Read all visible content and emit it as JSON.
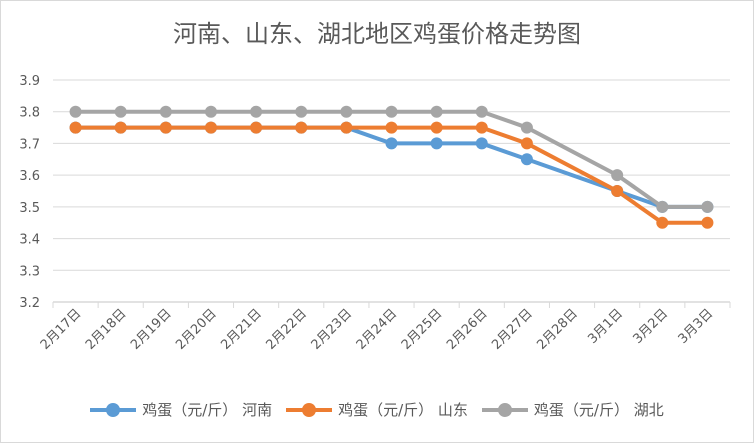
{
  "chart_data": {
    "type": "line",
    "title": "河南、山东、湖北地区鸡蛋价格走势图",
    "categories": [
      "2月17日",
      "2月18日",
      "2月19日",
      "2月20日",
      "2月21日",
      "2月22日",
      "2月23日",
      "2月24日",
      "2月25日",
      "2月26日",
      "2月27日",
      "2月28日",
      "3月1日",
      "3月2日",
      "3月3日"
    ],
    "ylim": [
      3.2,
      3.9
    ],
    "yticks": [
      "3.2",
      "3.3",
      "3.4",
      "3.5",
      "3.6",
      "3.7",
      "3.8",
      "3.9"
    ],
    "grid": true,
    "legend": "bottom",
    "series": [
      {
        "name": "鸡蛋（元/斤） 河南",
        "color": "#5b9bd5",
        "values": [
          3.75,
          3.75,
          3.75,
          3.75,
          3.75,
          3.75,
          3.75,
          3.7,
          3.7,
          3.7,
          3.65,
          null,
          3.55,
          3.5,
          3.5
        ]
      },
      {
        "name": "鸡蛋（元/斤） 山东",
        "color": "#ed7d31",
        "values": [
          3.75,
          3.75,
          3.75,
          3.75,
          3.75,
          3.75,
          3.75,
          3.75,
          3.75,
          3.75,
          3.7,
          null,
          3.55,
          3.45,
          3.45
        ]
      },
      {
        "name": "鸡蛋（元/斤） 湖北",
        "color": "#a5a5a5",
        "values": [
          3.8,
          3.8,
          3.8,
          3.8,
          3.8,
          3.8,
          3.8,
          3.8,
          3.8,
          3.8,
          3.75,
          null,
          3.6,
          3.5,
          3.5
        ]
      }
    ]
  }
}
